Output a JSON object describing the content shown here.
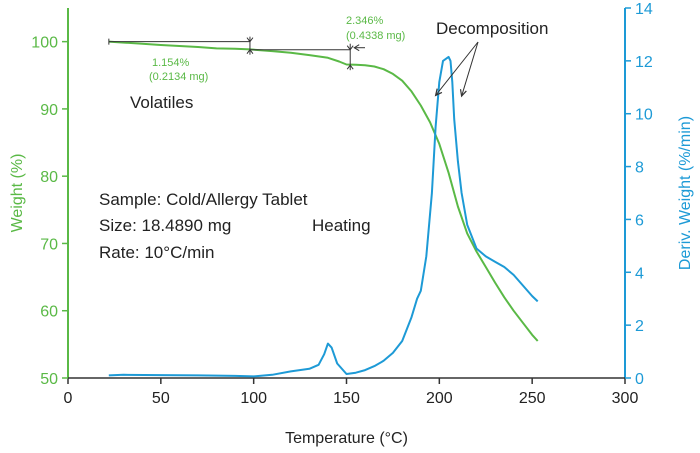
{
  "chart_data": {
    "type": "line",
    "title": "",
    "xlabel": "Temperature (°C)",
    "ylabel_left": "Weight (%)",
    "ylabel_right": "Deriv. Weight (%/min)",
    "xlim": [
      0,
      300
    ],
    "ylim_left": [
      50,
      105
    ],
    "ylim_right": [
      0,
      14
    ],
    "x_ticks": [
      "0",
      "50",
      "100",
      "150",
      "200",
      "250",
      "300"
    ],
    "y_left_ticks": [
      "50",
      "60",
      "70",
      "80",
      "90",
      "100"
    ],
    "y_right_ticks": [
      "0",
      "2",
      "4",
      "6",
      "8",
      "10",
      "12",
      "14"
    ],
    "grid": false,
    "colors": {
      "weight": "#5ab946",
      "deriv": "#1d9ad6",
      "axis_left": "#5ab946",
      "axis_right": "#1d9ad6",
      "bottom_axis": "#333333",
      "annotation": "#333333"
    },
    "series": [
      {
        "axis": "left",
        "x": [
          22,
          30,
          40,
          50,
          60,
          70,
          80,
          90,
          98,
          110,
          120,
          130,
          140,
          146,
          150,
          155,
          160,
          165,
          170,
          175,
          180,
          185,
          190,
          195,
          200,
          205,
          210,
          215,
          220,
          225,
          230,
          235,
          240,
          245,
          250,
          253
        ],
        "y": [
          100,
          99.85,
          99.7,
          99.5,
          99.35,
          99.2,
          99.0,
          98.95,
          98.85,
          98.6,
          98.35,
          98.0,
          97.6,
          97.05,
          96.6,
          96.55,
          96.5,
          96.3,
          95.9,
          95.2,
          94.2,
          92.6,
          90.5,
          88.0,
          84.8,
          80.5,
          75.5,
          71.5,
          68.8,
          66.5,
          64.2,
          62.0,
          60.0,
          58.2,
          56.4,
          55.5
        ]
      },
      {
        "axis": "right",
        "x": [
          22,
          30,
          50,
          70,
          90,
          100,
          110,
          120,
          130,
          135,
          138,
          140,
          142,
          145,
          150,
          155,
          160,
          165,
          170,
          175,
          180,
          185,
          188,
          190,
          193,
          196,
          198,
          200,
          202,
          204,
          205,
          206,
          207,
          208,
          210,
          212,
          215,
          220,
          225,
          230,
          235,
          240,
          245,
          250,
          253
        ],
        "y": [
          0.1,
          0.12,
          0.11,
          0.1,
          0.08,
          0.06,
          0.12,
          0.25,
          0.35,
          0.5,
          0.9,
          1.3,
          1.15,
          0.55,
          0.15,
          0.2,
          0.3,
          0.45,
          0.65,
          0.95,
          1.4,
          2.3,
          3.0,
          3.3,
          4.6,
          7.0,
          9.5,
          11.2,
          12.0,
          12.1,
          12.15,
          12.0,
          11.2,
          9.8,
          8.2,
          7.0,
          5.8,
          4.9,
          4.6,
          4.4,
          4.2,
          3.9,
          3.5,
          3.1,
          2.9
        ]
      }
    ],
    "annotations": {
      "volatiles_label": "Volatiles",
      "loss1_pct": "1.154%",
      "loss1_mg": "(0.2134 mg)",
      "loss2_pct": "2.346%",
      "loss2_mg": "(0.4338 mg)",
      "decomposition_label": "Decomposition",
      "sample_line": "Sample: Cold/Allergy Tablet",
      "size_line": "Size: 18.4890 mg",
      "rate_line": "Rate: 10°C/min",
      "heating_label": "Heating"
    }
  }
}
